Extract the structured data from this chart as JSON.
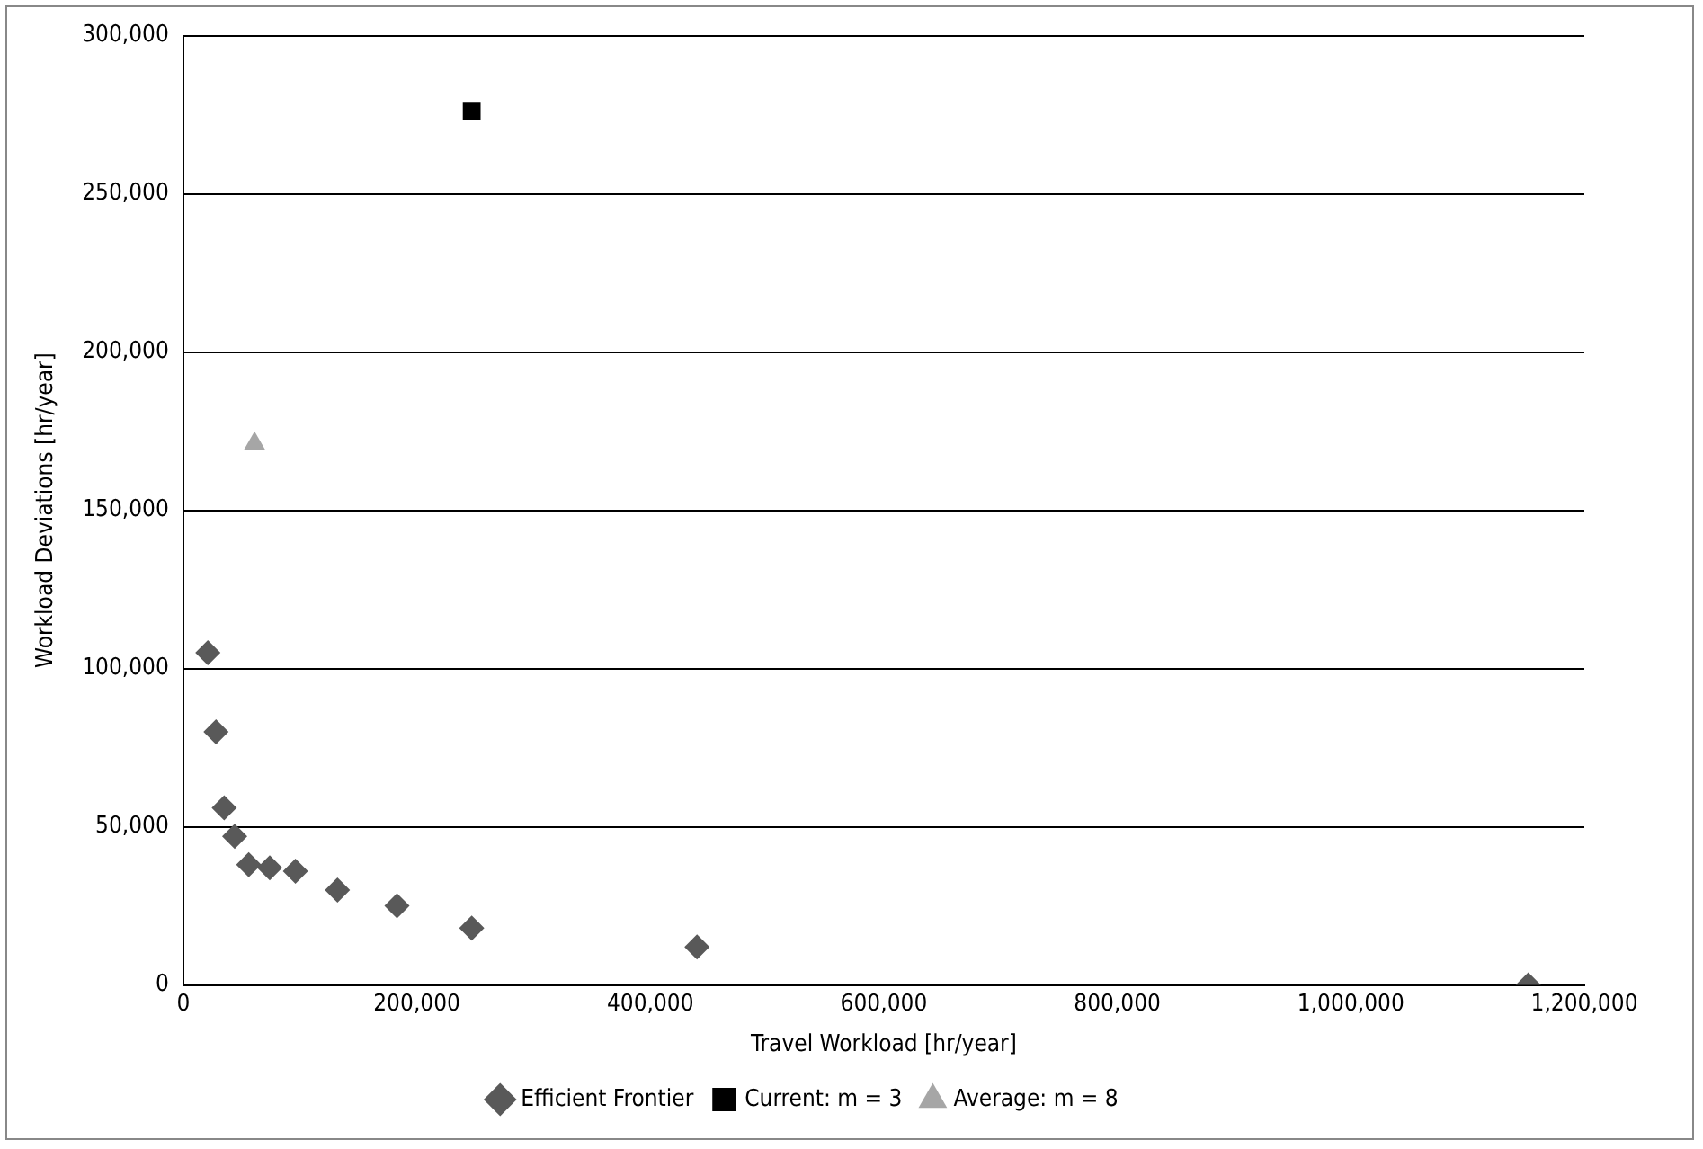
{
  "chart_data": {
    "type": "scatter",
    "xlabel": "Travel Workload [hr/year]",
    "ylabel": "Workload Deviations [hr/year]",
    "series": [
      {
        "name": "Efficient Frontier",
        "color": "#595959",
        "marker": "diamond",
        "x": [
          21000,
          28000,
          35000,
          44000,
          56000,
          74000,
          96000,
          132000,
          183000,
          247000,
          440000,
          1152000
        ],
        "values": [
          105000,
          80000,
          56000,
          47000,
          38000,
          37000,
          36000,
          30000,
          25000,
          18000,
          12000,
          0
        ]
      },
      {
        "name": "Current: m = 3",
        "color": "#000000",
        "marker": "square",
        "x": [
          247000
        ],
        "values": [
          276000
        ]
      },
      {
        "name": "Average: m = 8",
        "color": "#a6a6a6",
        "marker": "triangle",
        "x": [
          61000
        ],
        "values": [
          171000
        ]
      }
    ],
    "xlim": [
      0,
      1200000
    ],
    "xticks": [
      {
        "value": 0,
        "label": "0"
      },
      {
        "value": 200000,
        "label": "200,000"
      },
      {
        "value": 400000,
        "label": "400,000"
      },
      {
        "value": 600000,
        "label": "600,000"
      },
      {
        "value": 800000,
        "label": "800,000"
      },
      {
        "value": 1000000,
        "label": "1,000,000"
      },
      {
        "value": 1200000,
        "label": "1,200,000"
      }
    ],
    "ylim": [
      0,
      300000
    ],
    "yticks": [
      {
        "value": 0,
        "label": "0"
      },
      {
        "value": 50000,
        "label": "50,000"
      },
      {
        "value": 100000,
        "label": "100,000"
      },
      {
        "value": 150000,
        "label": "150,000"
      },
      {
        "value": 200000,
        "label": "200,000"
      },
      {
        "value": 250000,
        "label": "250,000"
      },
      {
        "value": 300000,
        "label": "300,000"
      }
    ],
    "grid": "y",
    "legend": "bottom"
  }
}
